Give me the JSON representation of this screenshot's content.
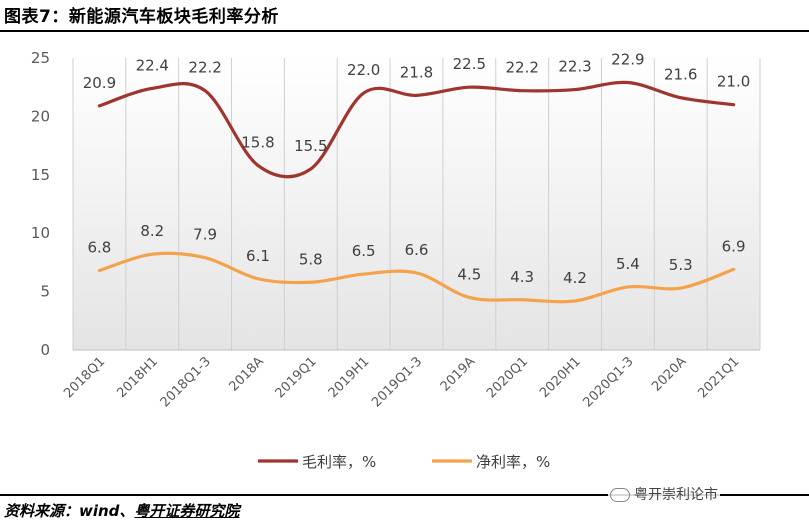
{
  "title": "图表7：新能源汽车板块毛利率分析",
  "source": {
    "prefix": "资料来源：wind、",
    "org": "粤开证券研究院"
  },
  "watermark": "粤开崇利论市",
  "chart_data": {
    "type": "line",
    "categories": [
      "2018Q1",
      "2018H1",
      "2018Q1-3",
      "2018A",
      "2019Q1",
      "2019H1",
      "2019Q1-3",
      "2019A",
      "2020Q1",
      "2020H1",
      "2020Q1-3",
      "2020A",
      "2021Q1"
    ],
    "ylim": [
      0,
      25
    ],
    "yticks": [
      0,
      5,
      10,
      15,
      20,
      25
    ],
    "grid": "vertical",
    "smooth": true,
    "legend_position": "bottom",
    "series": [
      {
        "name": "毛利率，%",
        "color": "#A0342F",
        "values": [
          20.9,
          22.4,
          22.2,
          15.8,
          15.5,
          22.0,
          21.8,
          22.5,
          22.2,
          22.3,
          22.9,
          21.6,
          21.0
        ],
        "labels": [
          "20.9",
          "22.4",
          "22.2",
          "15.8",
          "15.5",
          "22.0",
          "21.8",
          "22.5",
          "22.2",
          "22.3",
          "22.9",
          "21.6",
          "21.0"
        ]
      },
      {
        "name": "净利率，%",
        "color": "#F4A24C",
        "values": [
          6.8,
          8.2,
          7.9,
          6.1,
          5.8,
          6.5,
          6.6,
          4.5,
          4.3,
          4.2,
          5.4,
          5.3,
          6.9
        ],
        "labels": [
          "6.8",
          "8.2",
          "7.9",
          "6.1",
          "5.8",
          "6.5",
          "6.6",
          "4.5",
          "4.3",
          "4.2",
          "5.4",
          "5.3",
          "6.9"
        ]
      }
    ]
  }
}
